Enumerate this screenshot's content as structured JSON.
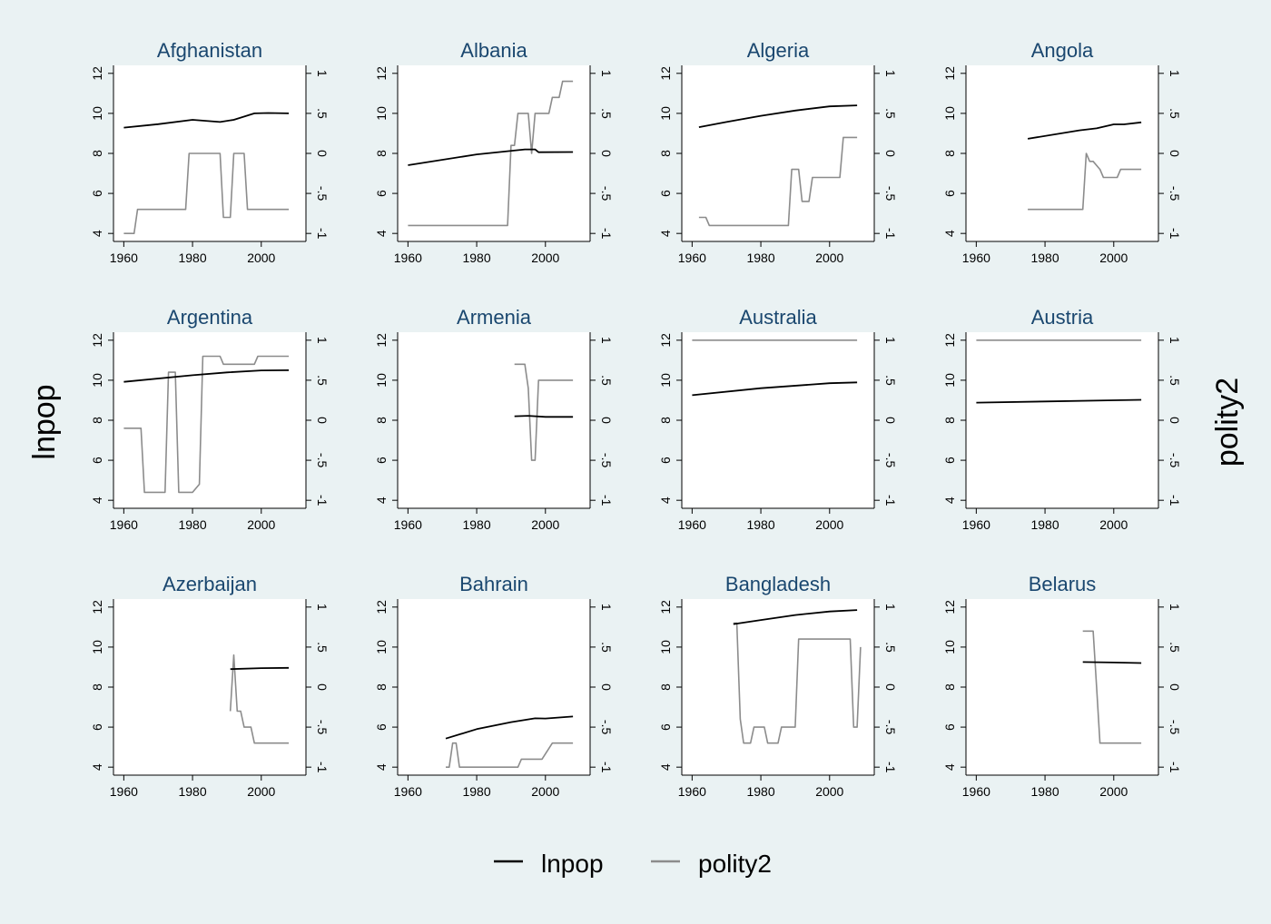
{
  "chart_data": {
    "type": "line",
    "layout": "4x3 small multiples, dual y-axis",
    "ylabel_left": "lnpop",
    "ylabel_right": "polity2",
    "xlim": [
      1957,
      2013
    ],
    "x_ticks": [
      1960,
      1980,
      2000
    ],
    "ylim_left": [
      3.6,
      12.4
    ],
    "y_ticks_left": [
      4,
      6,
      8,
      10,
      12
    ],
    "ylim_right": [
      -1.1,
      1.1
    ],
    "y_ticks_right": [
      -1,
      -0.5,
      0,
      0.5,
      1
    ],
    "y_tick_labels_right": [
      "-1",
      "-.5",
      "0",
      ".5",
      "1"
    ],
    "legend": {
      "position": "bottom",
      "entries": [
        {
          "name": "lnpop",
          "color": "#000000"
        },
        {
          "name": "polity2",
          "color": "#8c8c8c"
        }
      ]
    },
    "colors": {
      "lnpop": "#000000",
      "polity2": "#8c8c8c",
      "background": "#eaf2f3",
      "plot_area": "#ffffff",
      "title": "#1a476f"
    },
    "panels": [
      {
        "title": "Afghanistan",
        "lnpop": [
          [
            1960,
            9.29
          ],
          [
            1970,
            9.46
          ],
          [
            1980,
            9.68
          ],
          [
            1988,
            9.57
          ],
          [
            1992,
            9.68
          ],
          [
            1998,
            10.0
          ],
          [
            2002,
            10.02
          ],
          [
            2008,
            10.0
          ]
        ],
        "polity2": [
          [
            1960,
            -1
          ],
          [
            1963,
            -1
          ],
          [
            1964,
            -0.7
          ],
          [
            1978,
            -0.7
          ],
          [
            1979,
            0
          ],
          [
            1988,
            0
          ],
          [
            1989,
            -0.8
          ],
          [
            1991,
            -0.8
          ],
          [
            1992,
            0
          ],
          [
            1995,
            0
          ],
          [
            1996,
            -0.7
          ],
          [
            2008,
            -0.7
          ]
        ]
      },
      {
        "title": "Albania",
        "lnpop": [
          [
            1960,
            7.41
          ],
          [
            1980,
            7.95
          ],
          [
            1994,
            8.2
          ],
          [
            1997,
            8.2
          ],
          [
            1998,
            8.06
          ],
          [
            2008,
            8.07
          ]
        ],
        "polity2": [
          [
            1960,
            -0.9
          ],
          [
            1989,
            -0.9
          ],
          [
            1990,
            0.1
          ],
          [
            1991,
            0.1
          ],
          [
            1992,
            0.5
          ],
          [
            1995,
            0.5
          ],
          [
            1996,
            0
          ],
          [
            1997,
            0.5
          ],
          [
            2001,
            0.5
          ],
          [
            2002,
            0.7
          ],
          [
            2004,
            0.7
          ],
          [
            2005,
            0.9
          ],
          [
            2008,
            0.9
          ]
        ]
      },
      {
        "title": "Algeria",
        "lnpop": [
          [
            1962,
            9.31
          ],
          [
            1970,
            9.57
          ],
          [
            1980,
            9.88
          ],
          [
            1990,
            10.14
          ],
          [
            2000,
            10.35
          ],
          [
            2008,
            10.4
          ]
        ],
        "polity2": [
          [
            1962,
            -0.8
          ],
          [
            1964,
            -0.8
          ],
          [
            1965,
            -0.9
          ],
          [
            1988,
            -0.9
          ],
          [
            1989,
            -0.2
          ],
          [
            1991,
            -0.2
          ],
          [
            1992,
            -0.6
          ],
          [
            1994,
            -0.6
          ],
          [
            1995,
            -0.3
          ],
          [
            2003,
            -0.3
          ],
          [
            2004,
            0.2
          ],
          [
            2008,
            0.2
          ]
        ]
      },
      {
        "title": "Angola",
        "lnpop": [
          [
            1975,
            8.73
          ],
          [
            1990,
            9.15
          ],
          [
            1995,
            9.25
          ],
          [
            2000,
            9.45
          ],
          [
            2003,
            9.45
          ],
          [
            2008,
            9.55
          ]
        ],
        "polity2": [
          [
            1975,
            -0.7
          ],
          [
            1991,
            -0.7
          ],
          [
            1992,
            0
          ],
          [
            1993,
            -0.1
          ],
          [
            1994,
            -0.1
          ],
          [
            1996,
            -0.2
          ],
          [
            1997,
            -0.3
          ],
          [
            2001,
            -0.3
          ],
          [
            2002,
            -0.2
          ],
          [
            2008,
            -0.2
          ]
        ]
      },
      {
        "title": "Argentina",
        "lnpop": [
          [
            1960,
            9.92
          ],
          [
            1980,
            10.25
          ],
          [
            1990,
            10.39
          ],
          [
            2000,
            10.49
          ],
          [
            2008,
            10.5
          ]
        ],
        "polity2": [
          [
            1960,
            -0.1
          ],
          [
            1965,
            -0.1
          ],
          [
            1966,
            -0.9
          ],
          [
            1972,
            -0.9
          ],
          [
            1973,
            0.6
          ],
          [
            1975,
            0.6
          ],
          [
            1976,
            -0.9
          ],
          [
            1980,
            -0.9
          ],
          [
            1982,
            -0.8
          ],
          [
            1983,
            0.8
          ],
          [
            1988,
            0.8
          ],
          [
            1989,
            0.7
          ],
          [
            1998,
            0.7
          ],
          [
            1999,
            0.8
          ],
          [
            2008,
            0.8
          ]
        ]
      },
      {
        "title": "Armenia",
        "lnpop": [
          [
            1991,
            8.2
          ],
          [
            1995,
            8.22
          ],
          [
            2000,
            8.17
          ],
          [
            2008,
            8.17
          ]
        ],
        "polity2": [
          [
            1991,
            0.7
          ],
          [
            1994,
            0.7
          ],
          [
            1995,
            0.4
          ],
          [
            1996,
            -0.5
          ],
          [
            1997,
            -0.5
          ],
          [
            1998,
            0.5
          ],
          [
            2008,
            0.5
          ]
        ]
      },
      {
        "title": "Australia",
        "lnpop": [
          [
            1960,
            9.25
          ],
          [
            1980,
            9.6
          ],
          [
            2000,
            9.85
          ],
          [
            2008,
            9.89
          ]
        ],
        "polity2": [
          [
            1960,
            1
          ],
          [
            2008,
            1
          ]
        ]
      },
      {
        "title": "Austria",
        "lnpop": [
          [
            1960,
            8.88
          ],
          [
            1980,
            8.94
          ],
          [
            2000,
            9.0
          ],
          [
            2008,
            9.02
          ]
        ],
        "polity2": [
          [
            1960,
            1
          ],
          [
            2008,
            1
          ]
        ]
      },
      {
        "title": "Azerbaijan",
        "lnpop": [
          [
            1991,
            8.9
          ],
          [
            2000,
            8.95
          ],
          [
            2008,
            8.96
          ]
        ],
        "polity2": [
          [
            1991,
            -0.3
          ],
          [
            1992,
            0.4
          ],
          [
            1993,
            -0.3
          ],
          [
            1994,
            -0.3
          ],
          [
            1995,
            -0.5
          ],
          [
            1997,
            -0.5
          ],
          [
            1998,
            -0.7
          ],
          [
            2008,
            -0.7
          ]
        ]
      },
      {
        "title": "Bahrain",
        "lnpop": [
          [
            1971,
            5.43
          ],
          [
            1980,
            5.9
          ],
          [
            1990,
            6.25
          ],
          [
            1997,
            6.44
          ],
          [
            2000,
            6.43
          ],
          [
            2008,
            6.53
          ]
        ],
        "polity2": [
          [
            1971,
            -1
          ],
          [
            1972,
            -1
          ],
          [
            1973,
            -0.7
          ],
          [
            1974,
            -0.7
          ],
          [
            1975,
            -1
          ],
          [
            1992,
            -1
          ],
          [
            1993,
            -0.9
          ],
          [
            1999,
            -0.9
          ],
          [
            2002,
            -0.7
          ],
          [
            2008,
            -0.7
          ]
        ]
      },
      {
        "title": "Bangladesh",
        "lnpop": [
          [
            1972,
            11.15
          ],
          [
            1980,
            11.35
          ],
          [
            1990,
            11.6
          ],
          [
            2000,
            11.78
          ],
          [
            2008,
            11.85
          ]
        ],
        "polity2": [
          [
            1972,
            0.8
          ],
          [
            1973,
            0.8
          ],
          [
            1974,
            -0.4
          ],
          [
            1975,
            -0.7
          ],
          [
            1977,
            -0.7
          ],
          [
            1978,
            -0.5
          ],
          [
            1981,
            -0.5
          ],
          [
            1982,
            -0.7
          ],
          [
            1985,
            -0.7
          ],
          [
            1986,
            -0.5
          ],
          [
            1990,
            -0.5
          ],
          [
            1991,
            0.6
          ],
          [
            2006,
            0.6
          ],
          [
            2007,
            -0.5
          ],
          [
            2008,
            -0.5
          ],
          [
            2009,
            0.5
          ]
        ]
      },
      {
        "title": "Belarus",
        "lnpop": [
          [
            1991,
            9.25
          ],
          [
            2000,
            9.23
          ],
          [
            2008,
            9.2
          ]
        ],
        "polity2": [
          [
            1991,
            0.7
          ],
          [
            1994,
            0.7
          ],
          [
            1995,
            0
          ],
          [
            1996,
            -0.7
          ],
          [
            2008,
            -0.7
          ]
        ]
      }
    ]
  }
}
